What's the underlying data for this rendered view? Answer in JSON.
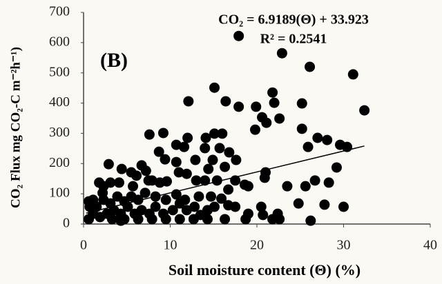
{
  "chart_data": {
    "type": "scatter",
    "title": "(B)",
    "equation": "CO₂ = 6.9189(Θ)  + 33.923",
    "r_squared": "R² = 0.2541",
    "x_label": "Soil moisture content (Θ) (%)",
    "y_label": "CO₂ Flux  mg CO₂-C m⁻²h⁻¹)",
    "xlim": [
      0,
      40
    ],
    "xticks": [
      0,
      10,
      20,
      30,
      40
    ],
    "ylim": [
      0,
      700
    ],
    "yticks": [
      0,
      100,
      200,
      300,
      400,
      500,
      600,
      700
    ],
    "color": "#000000",
    "grid": false,
    "trendline": {
      "slope": 6.9189,
      "intercept": 33.923,
      "x_range": [
        0.3,
        32.4
      ],
      "color": "#000000"
    },
    "x": [
      17.9,
      22.9,
      26.1,
      31.1,
      15.1,
      32.4,
      12.1,
      16.4,
      17.9,
      19.9,
      22.0,
      25.2,
      21.8,
      20.6,
      21.1,
      22.6,
      19.8,
      25.2,
      7.6,
      9.2,
      12.0,
      14.1,
      15.1,
      16.0,
      11.6,
      10.7,
      14.0,
      15.7,
      16.8,
      16.3,
      17.6,
      14.9,
      8.7,
      9.4,
      2.9,
      4.4,
      7.2,
      6.1,
      5.7,
      3.1,
      1.8,
      7.9,
      9.6,
      11.0,
      11.9,
      13.0,
      14.0,
      15.4,
      16.7,
      18.6,
      21.0,
      20.9,
      23.5,
      25.6,
      26.7,
      25.9,
      27.0,
      28.1,
      29.6,
      30.4,
      29.2,
      28.3,
      27.8,
      26.2,
      30.0,
      24.8,
      22.4,
      22.6,
      20.7,
      20.5,
      19.0,
      18.7,
      17.5,
      16.7,
      15.1,
      14.3,
      13.5,
      12.8,
      11.9,
      11.1,
      10.3,
      9.2,
      8.3,
      7.6,
      6.7,
      5.9,
      5.1,
      4.3,
      3.5,
      2.7,
      1.9,
      1.1,
      0.6,
      1.5,
      2.3,
      3.1,
      3.9,
      4.7,
      5.5,
      6.3,
      7.1,
      8.3,
      9.5,
      10.7,
      11.7,
      13.3,
      14.7,
      15.9,
      1.1,
      0.7,
      2.2,
      3.3,
      4.7,
      6.3,
      7.9,
      9.5,
      11.1,
      12.7,
      14.3,
      16.3,
      21.8,
      0.6,
      2.3,
      4.1,
      5.5,
      6.7,
      7.5,
      8.8,
      10.7,
      12.9,
      14.4,
      17.5,
      19.0,
      4.3
    ],
    "values": [
      622,
      565,
      520,
      495,
      451,
      376,
      406,
      406,
      388,
      388,
      401,
      399,
      435,
      353,
      335,
      349,
      312,
      315,
      296,
      301,
      285,
      285,
      299,
      299,
      255,
      262,
      251,
      251,
      237,
      189,
      212,
      212,
      239,
      214,
      198,
      182,
      176,
      160,
      125,
      137,
      137,
      144,
      141,
      171,
      166,
      144,
      144,
      144,
      114,
      130,
      171,
      153,
      125,
      125,
      144,
      255,
      285,
      278,
      262,
      255,
      187,
      137,
      64,
      11,
      57,
      68,
      34,
      16,
      30,
      57,
      34,
      16,
      57,
      62,
      57,
      46,
      30,
      57,
      46,
      68,
      46,
      34,
      57,
      34,
      46,
      34,
      57,
      34,
      46,
      34,
      23,
      34,
      16,
      57,
      80,
      68,
      91,
      75,
      91,
      80,
      103,
      91,
      80,
      98,
      80,
      91,
      91,
      84,
      80,
      57,
      103,
      16,
      16,
      16,
      16,
      16,
      16,
      16,
      16,
      16,
      16,
      75,
      125,
      137,
      171,
      194,
      144,
      137,
      205,
      212,
      182,
      144,
      125,
      11
    ]
  }
}
